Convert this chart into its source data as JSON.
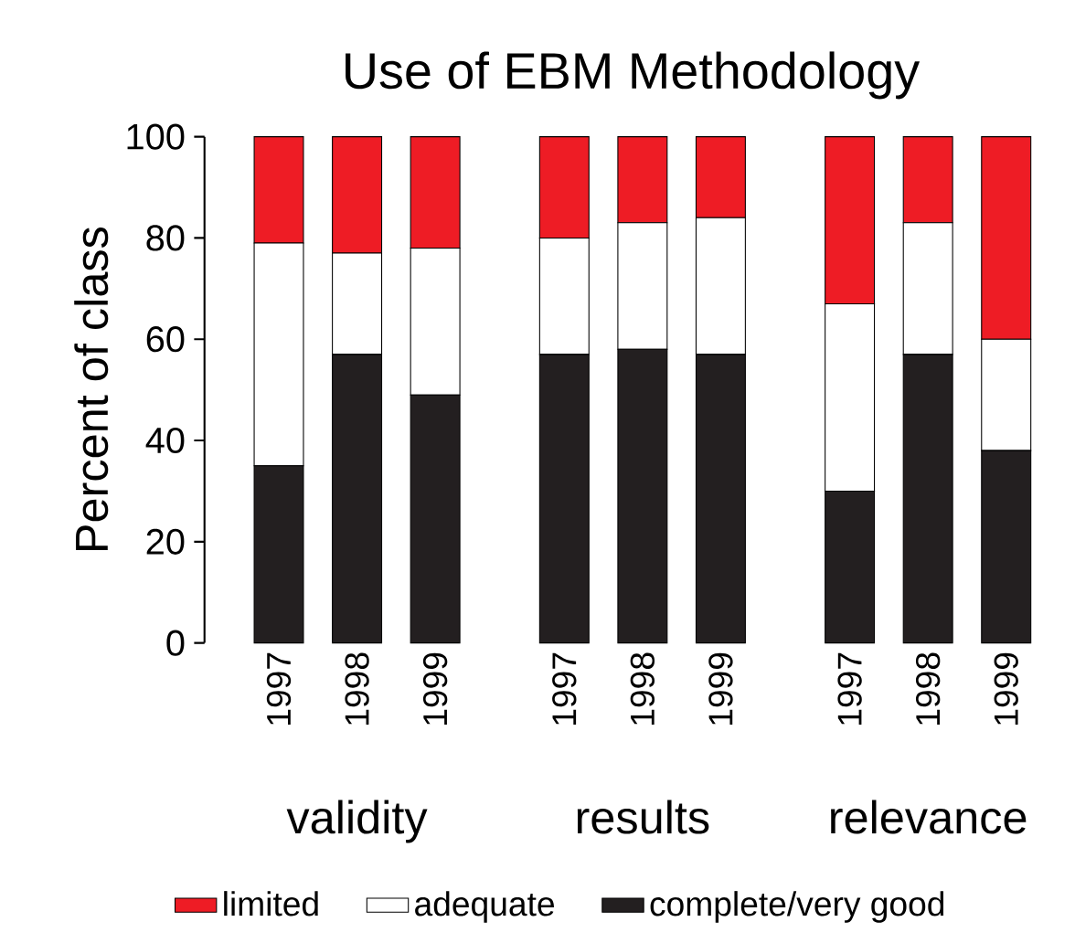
{
  "chart_data": {
    "type": "bar",
    "stacked": true,
    "title": "Use of EBM Methodology",
    "ylabel": "Percent of class",
    "categories": [
      "1997",
      "1998",
      "1999",
      "1997",
      "1998",
      "1999",
      "1997",
      "1998",
      "1999"
    ],
    "annotations": [
      "validity",
      "results",
      "relevance"
    ],
    "series": [
      {
        "name": "complete/very good",
        "color": "#231f20",
        "values": [
          35,
          57,
          49,
          57,
          58,
          57,
          30,
          57,
          38
        ]
      },
      {
        "name": "adequate",
        "color": "#ffffff",
        "values": [
          44,
          20,
          29,
          23,
          25,
          27,
          37,
          26,
          22
        ]
      },
      {
        "name": "limited",
        "color": "#ee1c25",
        "values": [
          21,
          23,
          22,
          20,
          17,
          16,
          33,
          17,
          40
        ]
      }
    ],
    "ylim": [
      0,
      100
    ],
    "yticks": [
      0,
      20,
      40,
      60,
      80,
      100
    ],
    "grid": false,
    "legend": "bottom"
  }
}
